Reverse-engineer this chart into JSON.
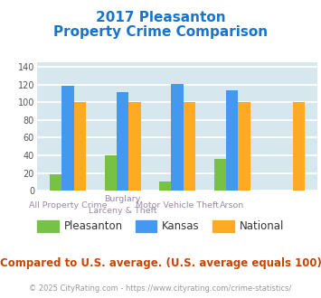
{
  "title_line1": "2017 Pleasanton",
  "title_line2": "Property Crime Comparison",
  "title_color": "#1874CD",
  "cat_labels_line1": [
    "All Property Crime",
    "Burglary",
    "Motor Vehicle Theft",
    "Arson"
  ],
  "cat_labels_line2": [
    "",
    "Larceny & Theft",
    "",
    ""
  ],
  "pleasanton": [
    19,
    40,
    10,
    36
  ],
  "kansas": [
    119,
    112,
    121,
    114
  ],
  "national": [
    100,
    100,
    100,
    100
  ],
  "arson_national": 100,
  "pleasanton_color": "#77C244",
  "kansas_color": "#4499EE",
  "national_color": "#FFAA22",
  "ylim": [
    0,
    145
  ],
  "yticks": [
    0,
    20,
    40,
    60,
    80,
    100,
    120,
    140
  ],
  "background_color": "#D6E8EE",
  "grid_color": "#ffffff",
  "footnote": "Compared to U.S. average. (U.S. average equals 100)",
  "copyright": "© 2025 CityRating.com - https://www.cityrating.com/crime-statistics/",
  "footnote_color": "#CC4400",
  "copyright_color": "#999999",
  "legend_labels": [
    "Pleasanton",
    "Kansas",
    "National"
  ],
  "xlabel_color": "#9988AA",
  "ytick_color": "#555555"
}
